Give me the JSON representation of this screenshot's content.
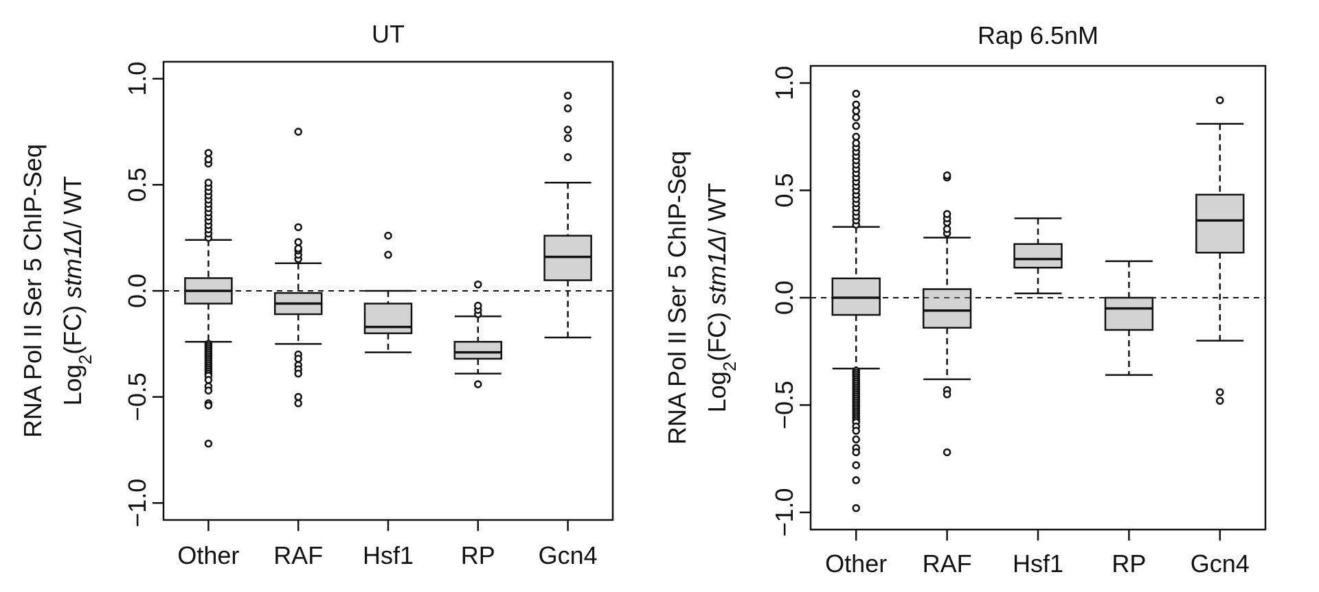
{
  "chart_data": [
    {
      "type": "box",
      "title": "UT",
      "ylabel_line1": "RNA Pol II Ser 5 ChIP-Seq",
      "ylabel_line2_prefix": "Log",
      "ylabel_line2_sub": "2",
      "ylabel_line2_mid": "(FC)  ",
      "ylabel_line2_italic": "stm1Δ",
      "ylabel_line2_suffix": "/ WT",
      "ylim": [
        -1.08,
        1.08
      ],
      "yticks": [
        -1.0,
        -0.5,
        0.0,
        0.5,
        1.0
      ],
      "ytick_labels": [
        "−1.0",
        "−0.5",
        "0.0",
        "0.5",
        "1.0"
      ],
      "reference_line": 0.0,
      "categories": [
        "Other",
        "RAF",
        "Hsf1",
        "RP",
        "Gcn4"
      ],
      "boxes": [
        {
          "category": "Other",
          "whisker_low": -0.24,
          "q1": -0.06,
          "median": 0.0,
          "q3": 0.06,
          "whisker_high": 0.24,
          "outliers": [
            -0.25,
            -0.26,
            -0.27,
            -0.28,
            -0.29,
            -0.3,
            -0.31,
            -0.32,
            -0.33,
            -0.34,
            -0.35,
            -0.36,
            -0.37,
            -0.38,
            -0.39,
            -0.4,
            -0.42,
            -0.45,
            -0.47,
            -0.53,
            -0.54,
            -0.72,
            0.25,
            0.27,
            0.29,
            0.31,
            0.33,
            0.35,
            0.37,
            0.39,
            0.41,
            0.43,
            0.45,
            0.47,
            0.49,
            0.51,
            0.6,
            0.62,
            0.65
          ]
        },
        {
          "category": "RAF",
          "whisker_low": -0.25,
          "q1": -0.11,
          "median": -0.06,
          "q3": -0.01,
          "whisker_high": 0.13,
          "outliers": [
            -0.3,
            -0.32,
            -0.35,
            -0.37,
            -0.39,
            -0.5,
            -0.53,
            0.15,
            0.17,
            0.19,
            0.2,
            0.23,
            0.3,
            0.75
          ]
        },
        {
          "category": "Hsf1",
          "whisker_low": -0.29,
          "q1": -0.2,
          "median": -0.17,
          "q3": -0.06,
          "whisker_high": 0.0,
          "outliers": [
            0.17,
            0.26
          ]
        },
        {
          "category": "RP",
          "whisker_low": -0.39,
          "q1": -0.32,
          "median": -0.29,
          "q3": -0.24,
          "whisker_high": -0.12,
          "outliers": [
            -0.44,
            -0.11,
            -0.09,
            -0.07,
            0.03
          ]
        },
        {
          "category": "Gcn4",
          "whisker_low": -0.22,
          "q1": 0.05,
          "median": 0.16,
          "q3": 0.26,
          "whisker_high": 0.51,
          "outliers": [
            0.63,
            0.72,
            0.76,
            0.86,
            0.92
          ]
        }
      ]
    },
    {
      "type": "box",
      "title": "Rap 6.5nM",
      "ylabel_line1": "RNA Pol II Ser 5 ChIP-Seq",
      "ylabel_line2_prefix": "Log",
      "ylabel_line2_sub": "2",
      "ylabel_line2_mid": "(FC)  ",
      "ylabel_line2_italic": "stm1Δ",
      "ylabel_line2_suffix": "/ WT",
      "ylim": [
        -1.08,
        1.08
      ],
      "yticks": [
        -1.0,
        -0.5,
        0.0,
        0.5,
        1.0
      ],
      "ytick_labels": [
        "−1.0",
        "−0.5",
        "0.0",
        "0.5",
        "1.0"
      ],
      "reference_line": 0.0,
      "categories": [
        "Other",
        "RAF",
        "Hsf1",
        "RP",
        "Gcn4"
      ],
      "boxes": [
        {
          "category": "Other",
          "whisker_low": -0.33,
          "q1": -0.08,
          "median": 0.0,
          "q3": 0.09,
          "whisker_high": 0.33,
          "outliers": [
            -0.34,
            -0.35,
            -0.36,
            -0.37,
            -0.38,
            -0.39,
            -0.4,
            -0.41,
            -0.42,
            -0.43,
            -0.44,
            -0.45,
            -0.46,
            -0.47,
            -0.48,
            -0.49,
            -0.5,
            -0.51,
            -0.52,
            -0.53,
            -0.54,
            -0.55,
            -0.56,
            -0.57,
            -0.58,
            -0.6,
            -0.62,
            -0.66,
            -0.7,
            -0.72,
            -0.78,
            -0.85,
            -0.98,
            0.34,
            0.36,
            0.38,
            0.4,
            0.42,
            0.44,
            0.46,
            0.48,
            0.5,
            0.52,
            0.54,
            0.56,
            0.58,
            0.6,
            0.62,
            0.64,
            0.66,
            0.68,
            0.7,
            0.72,
            0.75,
            0.8,
            0.84,
            0.87,
            0.9,
            0.95
          ]
        },
        {
          "category": "RAF",
          "whisker_low": -0.38,
          "q1": -0.14,
          "median": -0.06,
          "q3": 0.04,
          "whisker_high": 0.28,
          "outliers": [
            -0.43,
            -0.45,
            -0.72,
            0.3,
            0.32,
            0.35,
            0.37,
            0.39,
            0.56,
            0.57
          ]
        },
        {
          "category": "Hsf1",
          "whisker_low": 0.02,
          "q1": 0.14,
          "median": 0.18,
          "q3": 0.25,
          "whisker_high": 0.37,
          "outliers": []
        },
        {
          "category": "RP",
          "whisker_low": -0.36,
          "q1": -0.15,
          "median": -0.05,
          "q3": 0.0,
          "whisker_high": 0.17,
          "outliers": []
        },
        {
          "category": "Gcn4",
          "whisker_low": -0.2,
          "q1": 0.21,
          "median": 0.36,
          "q3": 0.48,
          "whisker_high": 0.81,
          "outliers": [
            -0.44,
            -0.48,
            0.92
          ]
        }
      ]
    }
  ],
  "colors": {
    "box_fill": "#d3d3d3",
    "stroke": "#111111",
    "background": "#ffffff"
  }
}
